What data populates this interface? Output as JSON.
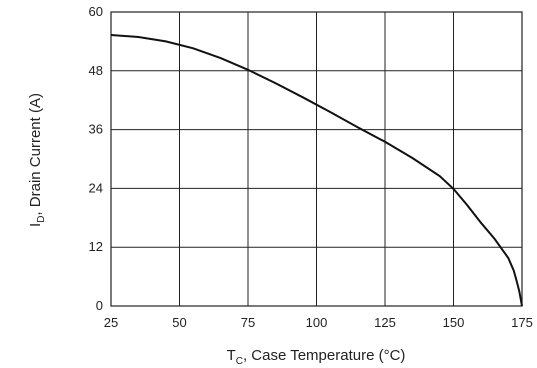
{
  "chart_data": {
    "type": "line",
    "xlabel": {
      "main": "T",
      "sub": "C",
      "rest": ", Case Temperature (°C)"
    },
    "ylabel": {
      "main": "I",
      "sub": "D",
      "rest": ", Drain Current (A)"
    },
    "xlim": [
      25,
      175
    ],
    "ylim": [
      0,
      60
    ],
    "xticks": [
      25,
      50,
      75,
      100,
      125,
      150,
      175
    ],
    "yticks": [
      0,
      12,
      24,
      36,
      48,
      60
    ],
    "grid": true,
    "series": [
      {
        "x": [
          25,
          35,
          45,
          55,
          65,
          75,
          85,
          95,
          105,
          115,
          125,
          135,
          145,
          150,
          155,
          160,
          165,
          170,
          172,
          173,
          174,
          175
        ],
        "y": [
          55.3,
          54.9,
          54.0,
          52.6,
          50.6,
          48.2,
          45.5,
          42.6,
          39.6,
          36.5,
          33.5,
          30.2,
          26.5,
          23.9,
          20.6,
          17.0,
          13.7,
          9.8,
          7.2,
          5.2,
          3.0,
          0
        ]
      }
    ],
    "colors": {
      "line": "#111111",
      "grid": "#222222"
    }
  }
}
